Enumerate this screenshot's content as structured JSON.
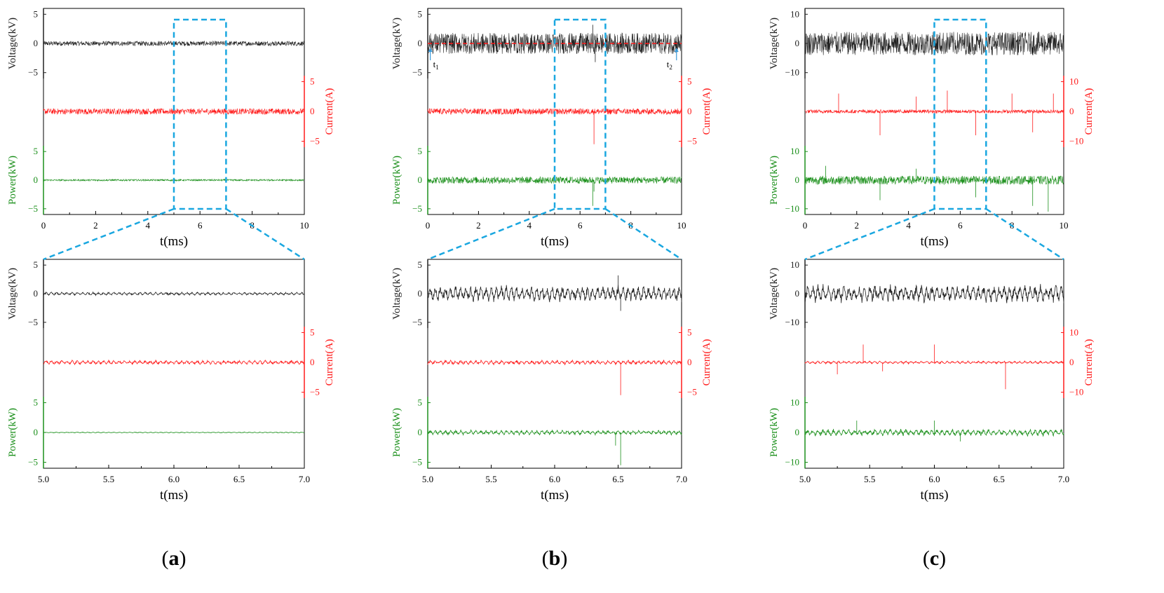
{
  "colors": {
    "voltage": "#222222",
    "current": "#ff1a1a",
    "power": "#1a8f1a",
    "zoom_box": "#1aa7e0",
    "marker": "#3a9ad9"
  },
  "panels": [
    {
      "id": "a",
      "label": "(a)",
      "label_letter": "a"
    },
    {
      "id": "b",
      "label": "(b)",
      "label_letter": "b"
    },
    {
      "id": "c",
      "label": "(c)",
      "label_letter": "c"
    }
  ],
  "chart_data": [
    {
      "panel": "a",
      "view": "full",
      "type": "line",
      "xlabel": "t(ms)",
      "xlim": [
        0,
        10
      ],
      "xticks": [
        "0",
        "2",
        "4",
        "6",
        "8",
        "10"
      ],
      "zoom_window": [
        5,
        7
      ],
      "series": [
        {
          "name": "Voltage",
          "axis_label": "Voltage(kV)",
          "unit": "kV",
          "range": [
            -6,
            6
          ],
          "ticks": [
            "5",
            "0",
            "−5"
          ],
          "baseline": 0,
          "noise_amplitude": 0.4,
          "spikes": []
        },
        {
          "name": "Current",
          "axis_label": "Current(A)",
          "unit": "A",
          "range": [
            -6,
            6
          ],
          "ticks": [
            "5",
            "0",
            "−5"
          ],
          "baseline": 0,
          "noise_amplitude": 0.5,
          "spikes": []
        },
        {
          "name": "Power",
          "axis_label": "Power(kW)",
          "unit": "kW",
          "range": [
            -6,
            6
          ],
          "ticks": [
            "5",
            "0",
            "−5"
          ],
          "baseline": 0,
          "noise_amplitude": 0.15,
          "spikes": []
        }
      ]
    },
    {
      "panel": "a",
      "view": "zoom",
      "type": "line",
      "xlabel": "t(ms)",
      "xlim": [
        5,
        7
      ],
      "xticks": [
        "5.0",
        "5.5",
        "6.0",
        "6.5",
        "7.0"
      ],
      "series": [
        {
          "name": "Voltage",
          "axis_label": "Voltage(kV)",
          "unit": "kV",
          "range": [
            -6,
            6
          ],
          "ticks": [
            "5",
            "0",
            "−5"
          ],
          "baseline": 0,
          "noise_amplitude": 0.35,
          "spikes": []
        },
        {
          "name": "Current",
          "axis_label": "Current(A)",
          "unit": "A",
          "range": [
            -6,
            6
          ],
          "ticks": [
            "5",
            "0",
            "−5"
          ],
          "baseline": 0,
          "noise_amplitude": 0.45,
          "spikes": []
        },
        {
          "name": "Power",
          "axis_label": "Power(kW)",
          "unit": "kW",
          "range": [
            -6,
            6
          ],
          "ticks": [
            "5",
            "0",
            "−5"
          ],
          "baseline": 0,
          "noise_amplitude": 0.1,
          "spikes": []
        }
      ]
    },
    {
      "panel": "b",
      "view": "full",
      "type": "line",
      "xlabel": "t(ms)",
      "xlim": [
        0,
        10
      ],
      "xticks": [
        "0",
        "2",
        "4",
        "6",
        "8",
        "10"
      ],
      "zoom_window": [
        5,
        7
      ],
      "markers": [
        {
          "label": "t",
          "sub": "1",
          "x": 0.1
        },
        {
          "label": "t",
          "sub": "2",
          "x": 9.8
        }
      ],
      "series": [
        {
          "name": "Voltage",
          "axis_label": "Voltage(kV)",
          "unit": "kV",
          "range": [
            -6,
            6
          ],
          "ticks": [
            "5",
            "0",
            "−5"
          ],
          "baseline": 0,
          "noise_amplitude": 1.8,
          "spikes": [
            [
              6.5,
              3.2
            ],
            [
              6.6,
              -3.2
            ]
          ]
        },
        {
          "name": "Current",
          "axis_label": "Current(A)",
          "unit": "A",
          "range": [
            -6,
            6
          ],
          "ticks": [
            "5",
            "0",
            "−5"
          ],
          "baseline": 0,
          "noise_amplitude": 0.5,
          "spikes": [
            [
              6.55,
              -5.5
            ]
          ]
        },
        {
          "name": "Power",
          "axis_label": "Power(kW)",
          "unit": "kW",
          "range": [
            -6,
            6
          ],
          "ticks": [
            "5",
            "0",
            "−5"
          ],
          "baseline": 0,
          "noise_amplitude": 0.6,
          "spikes": [
            [
              6.5,
              -4.5
            ],
            [
              6.55,
              -2
            ]
          ]
        }
      ]
    },
    {
      "panel": "b",
      "view": "zoom",
      "type": "line",
      "xlabel": "t(ms)",
      "xlim": [
        5,
        7
      ],
      "xticks": [
        "5.0",
        "5.5",
        "6.0",
        "6.5",
        "7.0"
      ],
      "series": [
        {
          "name": "Voltage",
          "axis_label": "Voltage(kV)",
          "unit": "kV",
          "range": [
            -6,
            6
          ],
          "ticks": [
            "5",
            "0",
            "−5"
          ],
          "baseline": 0,
          "noise_amplitude": 1.8,
          "spikes": [
            [
              6.5,
              3.2
            ],
            [
              6.52,
              -3.0
            ]
          ]
        },
        {
          "name": "Current",
          "axis_label": "Current(A)",
          "unit": "A",
          "range": [
            -6,
            6
          ],
          "ticks": [
            "5",
            "0",
            "−5"
          ],
          "baseline": 0,
          "noise_amplitude": 0.45,
          "spikes": [
            [
              6.52,
              -5.5
            ]
          ]
        },
        {
          "name": "Power",
          "axis_label": "Power(kW)",
          "unit": "kW",
          "range": [
            -6,
            6
          ],
          "ticks": [
            "5",
            "0",
            "−5"
          ],
          "baseline": 0,
          "noise_amplitude": 0.5,
          "spikes": [
            [
              6.52,
              -5.5
            ],
            [
              6.48,
              -2.2
            ]
          ]
        }
      ]
    },
    {
      "panel": "c",
      "view": "full",
      "type": "line",
      "xlabel": "t(ms)",
      "xlim": [
        0,
        10
      ],
      "xticks": [
        "0",
        "2",
        "4",
        "6",
        "8",
        "10"
      ],
      "zoom_window": [
        5,
        7
      ],
      "series": [
        {
          "name": "Voltage",
          "axis_label": "Voltage(kV)",
          "unit": "kV",
          "range": [
            -12,
            12
          ],
          "ticks": [
            "10",
            "0",
            "−10"
          ],
          "baseline": 0,
          "noise_amplitude": 4,
          "spikes": []
        },
        {
          "name": "Current",
          "axis_label": "Current(A)",
          "unit": "A",
          "range": [
            -12,
            12
          ],
          "ticks": [
            "10",
            "0",
            "−10"
          ],
          "baseline": 0,
          "noise_amplitude": 0.6,
          "spikes": [
            [
              1.3,
              6
            ],
            [
              2.9,
              -8
            ],
            [
              4.3,
              5
            ],
            [
              5.5,
              7
            ],
            [
              6.6,
              -8
            ],
            [
              8.0,
              6
            ],
            [
              8.8,
              -7
            ],
            [
              9.6,
              6
            ]
          ]
        },
        {
          "name": "Power",
          "axis_label": "Power(kW)",
          "unit": "kW",
          "range": [
            -12,
            12
          ],
          "ticks": [
            "10",
            "0",
            "−10"
          ],
          "baseline": 0,
          "noise_amplitude": 1.5,
          "spikes": [
            [
              0.8,
              5
            ],
            [
              2.9,
              -7
            ],
            [
              4.3,
              4
            ],
            [
              6.6,
              -6
            ],
            [
              8.8,
              -9
            ],
            [
              9.4,
              -11
            ]
          ]
        }
      ]
    },
    {
      "panel": "c",
      "view": "zoom",
      "type": "line",
      "xlabel": "t(ms)",
      "xlim": [
        5,
        7
      ],
      "xticks": [
        "5.0",
        "5.5",
        "6.0",
        "6.5",
        "7.0"
      ],
      "series": [
        {
          "name": "Voltage",
          "axis_label": "Voltage(kV)",
          "unit": "kV",
          "range": [
            -12,
            12
          ],
          "ticks": [
            "10",
            "0",
            "−10"
          ],
          "baseline": 0,
          "noise_amplitude": 4,
          "spikes": []
        },
        {
          "name": "Current",
          "axis_label": "Current(A)",
          "unit": "A",
          "range": [
            -12,
            12
          ],
          "ticks": [
            "10",
            "0",
            "−10"
          ],
          "baseline": 0,
          "noise_amplitude": 0.6,
          "spikes": [
            [
              5.25,
              -4
            ],
            [
              5.45,
              6
            ],
            [
              5.6,
              -3
            ],
            [
              6.0,
              6
            ],
            [
              6.55,
              -9
            ]
          ]
        },
        {
          "name": "Power",
          "axis_label": "Power(kW)",
          "unit": "kW",
          "range": [
            -12,
            12
          ],
          "ticks": [
            "10",
            "0",
            "−10"
          ],
          "baseline": 0,
          "noise_amplitude": 1.4,
          "spikes": [
            [
              5.4,
              4
            ],
            [
              6.0,
              4
            ],
            [
              6.2,
              -3
            ]
          ]
        }
      ]
    }
  ]
}
